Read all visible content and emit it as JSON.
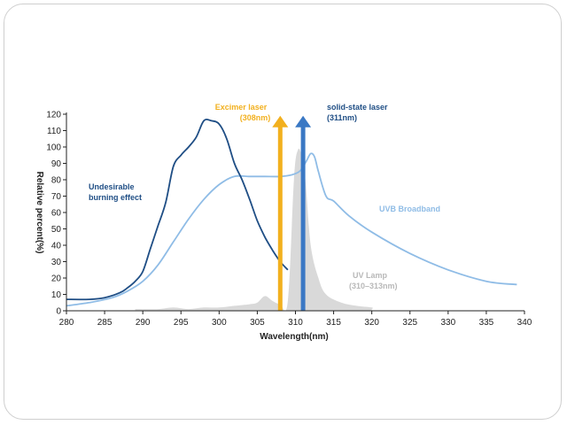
{
  "chart_data": {
    "type": "line",
    "xlabel": "Wavelength(nm)",
    "ylabel": "Relative percent(%)",
    "xlim": [
      280,
      340
    ],
    "ylim": [
      0,
      120
    ],
    "xticks": [
      280,
      285,
      290,
      295,
      300,
      305,
      310,
      315,
      320,
      325,
      330,
      335,
      340
    ],
    "yticks": [
      0,
      10,
      20,
      30,
      40,
      50,
      60,
      70,
      80,
      90,
      100,
      110,
      120
    ],
    "grid": false,
    "series": [
      {
        "name": "UVB Broadband",
        "color": "#8fbce6",
        "x": [
          280,
          283,
          286,
          288,
          290,
          292,
          294,
          296,
          298,
          300,
          302,
          304,
          306,
          308,
          309.5,
          310.5,
          311,
          311.5,
          312,
          312.5,
          313,
          314,
          315,
          317,
          320,
          325,
          330,
          335,
          339
        ],
        "y": [
          3,
          5,
          8,
          12,
          18,
          28,
          42,
          56,
          68,
          77,
          82,
          82,
          82,
          82,
          83,
          85,
          88,
          92,
          96,
          94,
          85,
          70,
          67,
          58,
          48,
          35,
          25,
          18,
          16
        ]
      },
      {
        "name": "Undesirable burning effect",
        "color": "#1f4e85",
        "x": [
          280,
          283,
          285,
          287,
          288,
          289,
          290,
          291,
          292,
          293,
          294,
          295,
          296,
          297,
          298,
          299,
          300,
          301,
          302,
          303,
          304,
          305,
          306,
          307,
          308,
          309
        ],
        "y": [
          7,
          7,
          8,
          11,
          14,
          18,
          24,
          38,
          52,
          66,
          88,
          95,
          100,
          106,
          116,
          116,
          114,
          105,
          90,
          80,
          68,
          55,
          45,
          37,
          30,
          25
        ]
      },
      {
        "name": "UV Lamp (310–313nm)",
        "color": "#d9d9d9",
        "x": [
          289,
          292,
          294,
          296,
          298,
          300,
          302,
          304,
          305,
          306,
          307,
          308,
          309,
          309.8,
          310.3,
          310.8,
          311.3,
          312,
          313,
          314,
          316,
          318,
          320,
          320
        ],
        "y": [
          1,
          1,
          2,
          1,
          2,
          2,
          3,
          4,
          5,
          9,
          6,
          4,
          6,
          80,
          98,
          95,
          80,
          40,
          20,
          10,
          5,
          3,
          2,
          1
        ]
      }
    ],
    "markers": [
      {
        "name": "Excimer laser",
        "x": 308,
        "label_line1": "Excimer laser",
        "label_line2": "(308nm)",
        "color": "#f2b01e",
        "y_top": 119
      },
      {
        "name": "solid-state laser",
        "x": 311,
        "label_line1": "solid-state laser",
        "label_line2": "(311nm)",
        "color": "#3a78c4",
        "y_top": 119
      }
    ],
    "annotations": {
      "burning": {
        "line1": "Undesirable",
        "line2": "burning effect",
        "color": "#1f4e85"
      },
      "uvb": {
        "text": "UVB Broadband",
        "color": "#8fbce6"
      },
      "lamp": {
        "line1": "UV Lamp",
        "line2": "(310–313nm)",
        "color": "#b8b8b8"
      }
    }
  }
}
